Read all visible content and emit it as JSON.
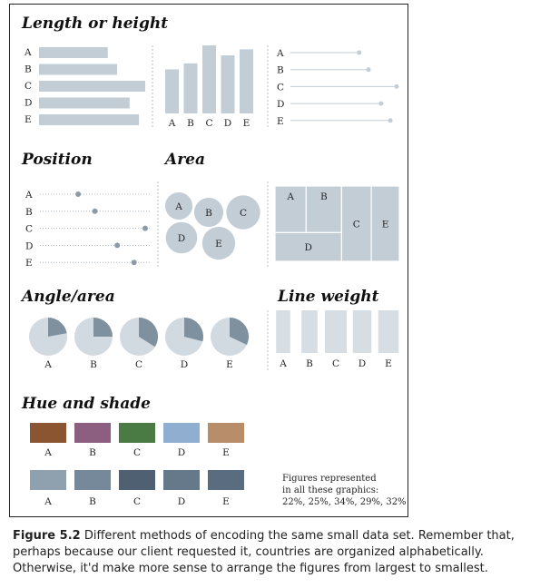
{
  "colors": {
    "bar": "#c3cdd6",
    "dot": "#8c9ba8",
    "pie_slice": "#7f909f",
    "guide": "#9aa7b2",
    "hue": [
      "#8b5531",
      "#8c5f80",
      "#4a7b45",
      "#90aed0",
      "#b88d6a"
    ],
    "shade": [
      "#8fa0af",
      "#75899a",
      "#4f6073",
      "#66798a",
      "#5a6d80"
    ]
  },
  "chart_data": {
    "type": "bar",
    "categories": [
      "A",
      "B",
      "C",
      "D",
      "E"
    ],
    "values": [
      22,
      25,
      34,
      29,
      32
    ],
    "value_suffix": "%",
    "panels": [
      {
        "title": "Length or height",
        "encodings": [
          "horizontal-bar",
          "vertical-bar",
          "lollipop"
        ]
      },
      {
        "title": "Position",
        "encodings": [
          "dot-position"
        ]
      },
      {
        "title": "Area",
        "encodings": [
          "bubble",
          "treemap"
        ]
      },
      {
        "title": "Angle/area",
        "encodings": [
          "pie"
        ]
      },
      {
        "title": "Line weight",
        "encodings": [
          "column-width"
        ]
      },
      {
        "title": "Hue and shade",
        "encodings": [
          "hue",
          "shade"
        ]
      }
    ]
  },
  "titles": {
    "length": "Length or height",
    "position": "Position",
    "area": "Area",
    "angle": "Angle/area",
    "lineweight": "Line weight",
    "hue": "Hue and shade"
  },
  "note": [
    "Figures represented",
    "in all these graphics:",
    "22%, 25%, 34%, 29%, 32%"
  ],
  "caption": {
    "label": "Figure 5.2",
    "text": " Different methods of encoding the same small data set. Remember that, perhaps because our client requested it, countries are organized alphabetically. Otherwise, it'd make more sense to arrange the figures from largest to smallest."
  }
}
